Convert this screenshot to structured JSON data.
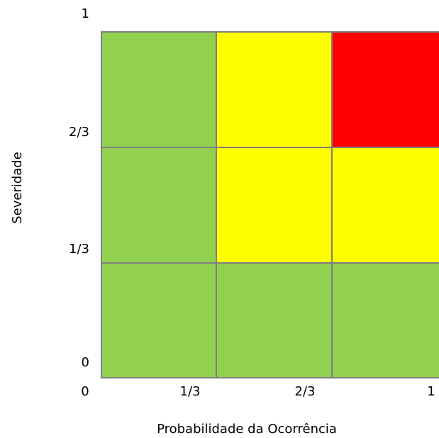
{
  "x_axis": {
    "label": "Probabilidade da Ocorrência",
    "ticks": [
      "0",
      "1/3",
      "2/3",
      "1"
    ]
  },
  "y_axis": {
    "label": "Severidade",
    "ticks": [
      "0",
      "1/3",
      "2/3",
      "1"
    ]
  },
  "cells": [
    [
      "#92d050",
      "#ffff00",
      "#ff0000"
    ],
    [
      "#92d050",
      "#ffff00",
      "#ffff00"
    ],
    [
      "#92d050",
      "#92d050",
      "#92d050"
    ]
  ],
  "border_color": "#7f7f7f"
}
